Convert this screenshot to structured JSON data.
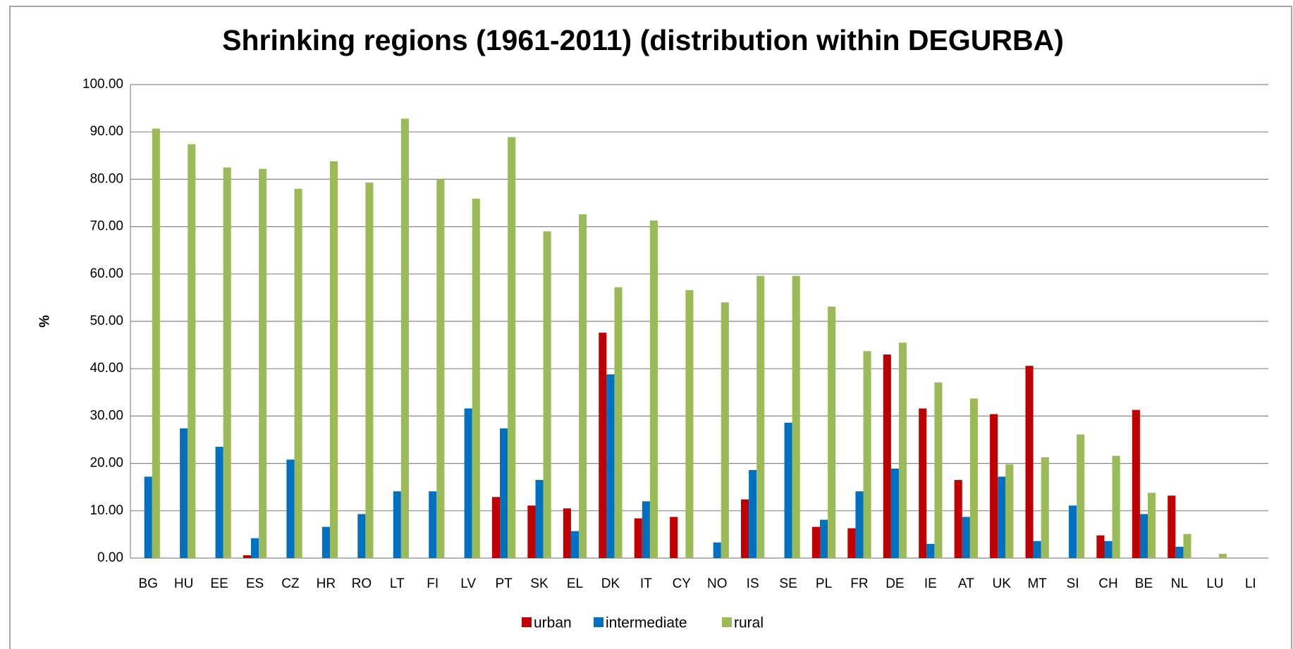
{
  "chart_data": {
    "type": "bar",
    "title": "Shrinking regions (1961-2011) (distribution within DEGURBA)",
    "y_label": "%",
    "categories": [
      "BG",
      "HU",
      "EE",
      "ES",
      "CZ",
      "HR",
      "RO",
      "LT",
      "FI",
      "LV",
      "PT",
      "SK",
      "EL",
      "DK",
      "IT",
      "CY",
      "NO",
      "IS",
      "SE",
      "PL",
      "FR",
      "DE",
      "IE",
      "AT",
      "UK",
      "MT",
      "SI",
      "CH",
      "BE",
      "NL",
      "LU",
      "LI"
    ],
    "series": [
      {
        "name": "urban",
        "color": "#c00000",
        "values": [
          0,
          0,
          0,
          0.6,
          0,
          0,
          0,
          0,
          0,
          0,
          12.9,
          11.1,
          10.5,
          47.6,
          8.4,
          8.7,
          0,
          12.4,
          0,
          6.6,
          6.3,
          43.0,
          31.6,
          16.5,
          30.4,
          40.6,
          0,
          4.8,
          31.3,
          13.2,
          0,
          0
        ]
      },
      {
        "name": "intermediate",
        "color": "#0070c0",
        "values": [
          17.2,
          27.4,
          23.5,
          4.2,
          20.8,
          6.6,
          9.3,
          14.1,
          14.1,
          31.6,
          27.4,
          16.5,
          5.7,
          38.8,
          12.0,
          0,
          3.3,
          18.6,
          28.6,
          8.1,
          14.1,
          18.9,
          3.0,
          8.7,
          17.2,
          3.6,
          11.1,
          3.6,
          9.3,
          2.4,
          0,
          0
        ]
      },
      {
        "name": "rural",
        "color": "#9bbb59",
        "values": [
          90.7,
          87.4,
          82.5,
          82.2,
          78.0,
          83.8,
          79.3,
          92.8,
          80.0,
          75.9,
          88.9,
          69.0,
          72.6,
          57.2,
          71.3,
          56.6,
          54.0,
          59.6,
          59.6,
          53.1,
          43.7,
          45.5,
          37.1,
          33.7,
          19.8,
          21.3,
          26.1,
          21.6,
          13.8,
          5.1,
          0.9,
          0
        ]
      }
    ],
    "ylim": [
      0,
      100
    ],
    "yticks": [
      {
        "value": 0,
        "label": "0.00"
      },
      {
        "value": 10,
        "label": "10.00"
      },
      {
        "value": 20,
        "label": "20.00"
      },
      {
        "value": 30,
        "label": "30.00"
      },
      {
        "value": 40,
        "label": "40.00"
      },
      {
        "value": 50,
        "label": "50.00"
      },
      {
        "value": 60,
        "label": "60.00"
      },
      {
        "value": 70,
        "label": "70.00"
      },
      {
        "value": 80,
        "label": "80.00"
      },
      {
        "value": 90,
        "label": "90.00"
      },
      {
        "value": 100,
        "label": "100.00"
      }
    ],
    "grid": true,
    "legend": "bottom"
  }
}
